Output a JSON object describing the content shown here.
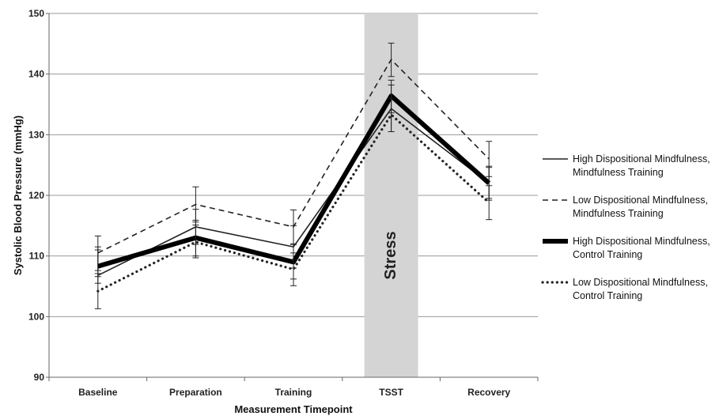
{
  "chart_data": {
    "type": "line",
    "xlabel": "Measurement Timepoint",
    "ylabel": "Systolic Blood Pressure (mmHg)",
    "ylim": [
      90,
      150
    ],
    "yticks": [
      90,
      100,
      110,
      120,
      130,
      140,
      150
    ],
    "categories": [
      "Baseline",
      "Preparation",
      "Training",
      "TSST",
      "Recovery"
    ],
    "grid": true,
    "legend_position": "right",
    "shaded_region": {
      "category": "TSST",
      "label": "Stress",
      "color": "#d4d4d4"
    },
    "series": [
      {
        "name": "High Dispositional Mindfulness, Mindfulness Training",
        "name_lines": [
          "High Dispositional Mindfulness,",
          "Mindfulness Training"
        ],
        "style": "solid-thin",
        "values": [
          106.8,
          114.8,
          111.5,
          134.3,
          122.0
        ],
        "err_low": [
          106.6,
          111.9,
          108.0,
          130.5,
          119.5
        ],
        "err_high": [
          111.5,
          117.7,
          115.0,
          138.2,
          124.6
        ]
      },
      {
        "name": "Low Dispositional Mindfulness, Mindfulness Training",
        "name_lines": [
          "Low Dispositional Mindfulness,",
          "Mindfulness Training"
        ],
        "style": "dashed",
        "values": [
          110.5,
          118.5,
          114.8,
          142.4,
          126.0
        ],
        "err_low": [
          107.6,
          115.6,
          112.0,
          139.6,
          123.1
        ],
        "err_high": [
          113.3,
          121.4,
          117.6,
          145.1,
          128.9
        ]
      },
      {
        "name": "High Dispositional Mindfulness, Control Training",
        "name_lines": [
          "High Dispositional Mindfulness,",
          "Control Training"
        ],
        "style": "solid-thick",
        "values": [
          108.3,
          113.0,
          109.0,
          136.4,
          122.0
        ],
        "err_low": [
          105.5,
          110.0,
          106.2,
          133.6,
          119.2
        ],
        "err_high": [
          111.0,
          115.9,
          111.9,
          139.0,
          124.8
        ]
      },
      {
        "name": "Low Dispositional Mindfulness, Control Training",
        "name_lines": [
          "Low Dispositional Mindfulness,",
          "Control Training"
        ],
        "style": "dotted",
        "values": [
          104.2,
          112.3,
          107.8,
          133.3,
          118.8
        ],
        "err_low": [
          101.3,
          109.7,
          105.1,
          130.5,
          116.0
        ],
        "err_high": [
          107.1,
          115.1,
          110.5,
          136.0,
          121.6
        ]
      }
    ]
  }
}
